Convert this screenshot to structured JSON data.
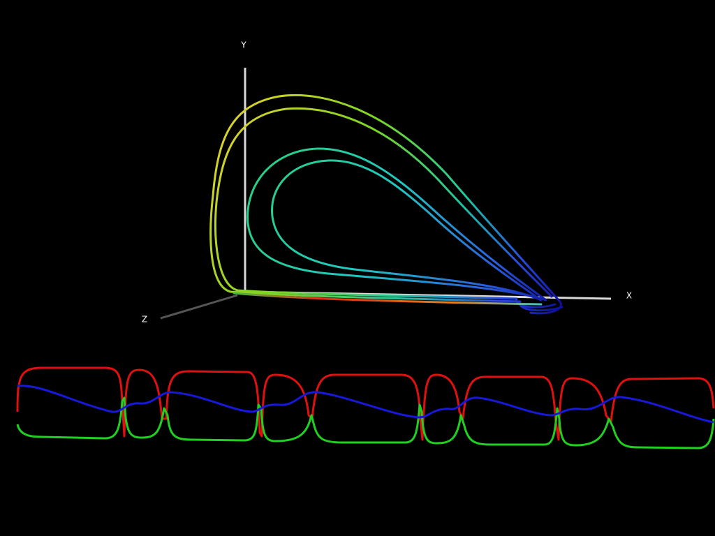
{
  "axes": {
    "y_label": "Y",
    "x_label": "X",
    "z_label": "Z"
  }
}
